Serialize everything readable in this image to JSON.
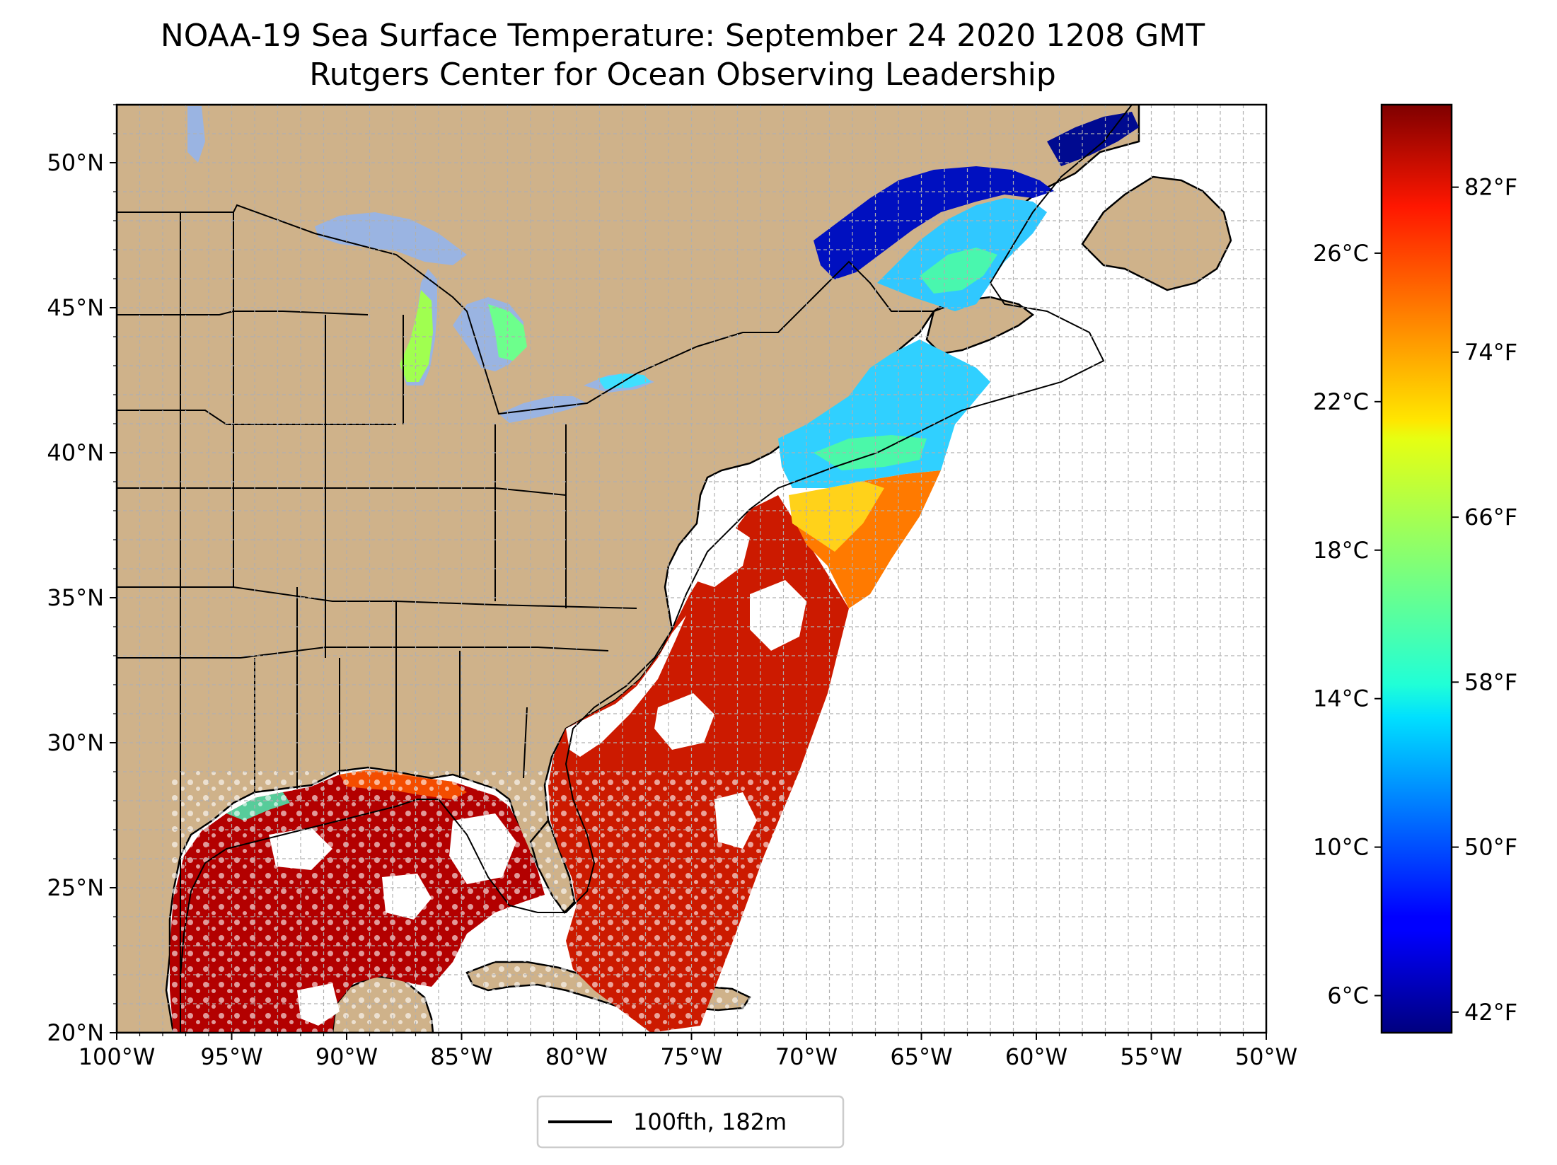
{
  "title": {
    "line1": "NOAA-19 Sea Surface Temperature: September 24 2020 1208 GMT",
    "line2": "Rutgers Center for Ocean Observing Leadership"
  },
  "map": {
    "projection": "equirectangular",
    "lon_range": [
      -100,
      -50
    ],
    "lat_range": [
      20,
      52
    ],
    "grid": true,
    "land_color": "#cfb28a",
    "lake_color": "#9ab4e2",
    "ocean_nodata_color": "#ffffff",
    "coastline_color": "#000000",
    "lon_ticks": [
      {
        "value": -100,
        "label": "100°W"
      },
      {
        "value": -95,
        "label": "95°W"
      },
      {
        "value": -90,
        "label": "90°W"
      },
      {
        "value": -85,
        "label": "85°W"
      },
      {
        "value": -80,
        "label": "80°W"
      },
      {
        "value": -75,
        "label": "75°W"
      },
      {
        "value": -70,
        "label": "70°W"
      },
      {
        "value": -65,
        "label": "65°W"
      },
      {
        "value": -60,
        "label": "60°W"
      },
      {
        "value": -55,
        "label": "55°W"
      },
      {
        "value": -50,
        "label": "50°W"
      }
    ],
    "lat_ticks": [
      {
        "value": 20,
        "label": "20°N"
      },
      {
        "value": 25,
        "label": "25°N"
      },
      {
        "value": 30,
        "label": "30°N"
      },
      {
        "value": 35,
        "label": "35°N"
      },
      {
        "value": 40,
        "label": "40°N"
      },
      {
        "value": 45,
        "label": "45°N"
      },
      {
        "value": 50,
        "label": "50°N"
      }
    ]
  },
  "colorbar": {
    "colormap": "jet",
    "range_c": [
      5,
      30
    ],
    "celsius_ticks": [
      {
        "value": 6,
        "label": "6°C"
      },
      {
        "value": 10,
        "label": "10°C"
      },
      {
        "value": 14,
        "label": "14°C"
      },
      {
        "value": 18,
        "label": "18°C"
      },
      {
        "value": 22,
        "label": "22°C"
      },
      {
        "value": 26,
        "label": "26°C"
      }
    ],
    "fahrenheit_ticks": [
      {
        "value": 42,
        "label": "42°F"
      },
      {
        "value": 50,
        "label": "50°F"
      },
      {
        "value": 58,
        "label": "58°F"
      },
      {
        "value": 66,
        "label": "66°F"
      },
      {
        "value": 74,
        "label": "74°F"
      },
      {
        "value": 82,
        "label": "82°F"
      }
    ]
  },
  "legend": {
    "label": "100fth, 182m",
    "line_color": "#000000",
    "placement": "bottom-center"
  }
}
